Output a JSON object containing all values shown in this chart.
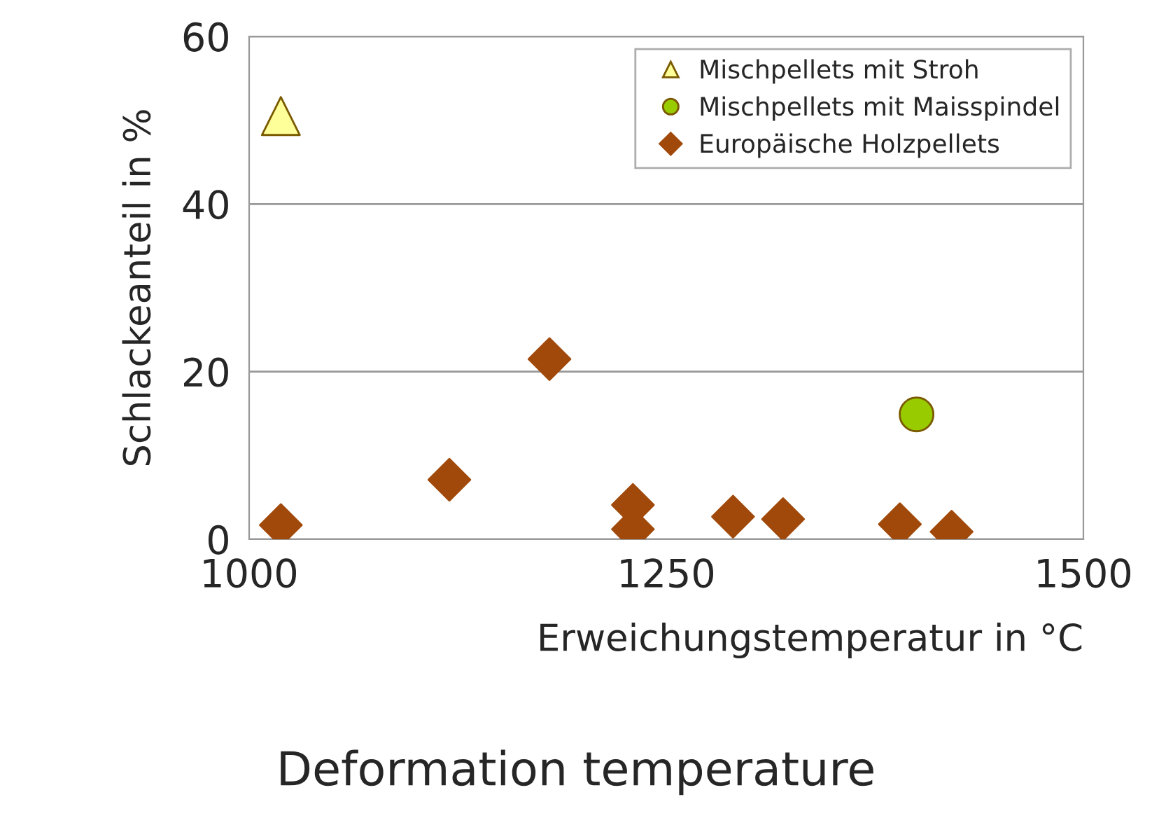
{
  "chart_data": {
    "type": "scatter",
    "xlabel": "Erweichungstemperatur in °C",
    "ylabel": "Schlackeanteil in %",
    "annotations": [
      "Deformation temperature"
    ],
    "series": [
      {
        "name": "Mischpellets mit Stroh",
        "color": "#ffff99",
        "marker": "triangle",
        "x": [
          1019
        ],
        "values": [
          50.5
        ]
      },
      {
        "name": "Mischpellets mit Maisspindel",
        "color": "#99cc00",
        "marker": "circle",
        "x": [
          1400
        ],
        "values": [
          14.9
        ]
      },
      {
        "name": "Europäische Holzpellets",
        "color": "#a0490a",
        "marker": "diamond",
        "x": [
          1019,
          1120,
          1180,
          1230,
          1230,
          1290,
          1320,
          1390,
          1421
        ],
        "values": [
          1.7,
          7.1,
          21.5,
          4.1,
          1.2,
          2.7,
          2.4,
          1.8,
          0.9
        ]
      }
    ],
    "xlim": [
      1000,
      1500
    ],
    "xticks": [
      1000,
      1250,
      1500
    ],
    "ylim": [
      0,
      60
    ],
    "yticks": [
      0,
      20,
      40,
      60
    ],
    "grid": "y",
    "legend": "top right"
  }
}
